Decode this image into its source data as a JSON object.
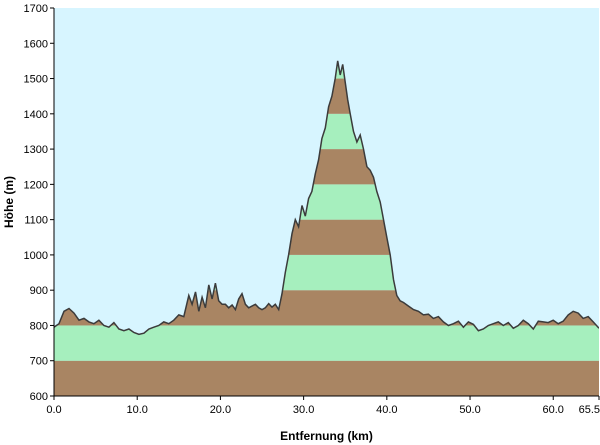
{
  "chart_data": {
    "type": "area",
    "title": "",
    "xlabel": "Entfernung  (km)",
    "ylabel": "Höhe (m)",
    "xlim": [
      0,
      65.5
    ],
    "ylim": [
      600,
      1700
    ],
    "x_ticks": [
      0,
      10,
      20,
      30,
      40,
      50,
      60,
      65.5
    ],
    "x_tick_labels": [
      "0.0",
      "10.0",
      "20.0",
      "30.0",
      "40.0",
      "50.0",
      "60.0",
      "65.5"
    ],
    "y_ticks": [
      600,
      700,
      800,
      900,
      1000,
      1100,
      1200,
      1300,
      1400,
      1500,
      1600,
      1700
    ],
    "y_tick_labels": [
      "600",
      "700",
      "800",
      "900",
      "1000",
      "1100",
      "1200",
      "1300",
      "1400",
      "1500",
      "1600",
      "1700"
    ],
    "band_interval_m": 100,
    "band_colors": [
      "#a98563",
      "#a6efbe"
    ],
    "background_color": "#d7f5ff",
    "line_color": "#3b3b3b",
    "series": [
      {
        "x": [
          0,
          0.6,
          1.2,
          1.8,
          2.4,
          3.0,
          3.6,
          4.2,
          4.8,
          5.4,
          6.0,
          6.6,
          7.2,
          7.8,
          8.4,
          9.0,
          9.6,
          10.2,
          10.8,
          11.4,
          12.0,
          12.6,
          13.2,
          13.8,
          14.4,
          15.0,
          15.6,
          16.2,
          16.6,
          17.0,
          17.4,
          17.8,
          18.2,
          18.6,
          19.0,
          19.4,
          19.8,
          20.2,
          20.6,
          21.0,
          21.4,
          21.8,
          22.2,
          22.6,
          23.0,
          23.4,
          23.8,
          24.2,
          24.6,
          25.0,
          25.4,
          25.8,
          26.2,
          26.6,
          27.0,
          27.4,
          27.8,
          28.2,
          28.6,
          29.0,
          29.4,
          29.8,
          30.2,
          30.6,
          31.0,
          31.4,
          31.8,
          32.2,
          32.6,
          33.0,
          33.4,
          33.8,
          34.1,
          34.4,
          34.7,
          35.0,
          35.3,
          35.6,
          36.0,
          36.4,
          36.8,
          37.2,
          37.6,
          38.0,
          38.4,
          38.8,
          39.2,
          39.6,
          40.0,
          40.4,
          40.8,
          41.2,
          41.6,
          42.0,
          42.6,
          43.2,
          43.8,
          44.4,
          45.0,
          45.6,
          46.2,
          46.8,
          47.4,
          48.0,
          48.6,
          49.2,
          49.8,
          50.4,
          51.0,
          51.6,
          52.2,
          52.8,
          53.4,
          54.0,
          54.6,
          55.2,
          55.8,
          56.4,
          57.0,
          57.6,
          58.2,
          58.8,
          59.4,
          60.0,
          60.6,
          61.2,
          61.8,
          62.4,
          63.0,
          63.6,
          64.2,
          64.8,
          65.5
        ],
        "values": [
          795,
          805,
          840,
          848,
          835,
          815,
          820,
          810,
          805,
          815,
          800,
          795,
          808,
          790,
          785,
          790,
          780,
          775,
          778,
          790,
          795,
          800,
          810,
          805,
          815,
          830,
          825,
          885,
          860,
          895,
          840,
          880,
          850,
          915,
          875,
          920,
          870,
          860,
          860,
          850,
          858,
          845,
          875,
          890,
          860,
          850,
          855,
          860,
          850,
          845,
          850,
          862,
          852,
          860,
          845,
          890,
          950,
          1000,
          1060,
          1100,
          1080,
          1140,
          1110,
          1160,
          1180,
          1230,
          1270,
          1330,
          1360,
          1420,
          1450,
          1500,
          1550,
          1510,
          1540,
          1490,
          1440,
          1400,
          1350,
          1320,
          1340,
          1300,
          1250,
          1240,
          1220,
          1180,
          1150,
          1100,
          1050,
          1000,
          930,
          885,
          870,
          865,
          855,
          845,
          840,
          830,
          832,
          820,
          825,
          810,
          800,
          805,
          812,
          795,
          810,
          803,
          785,
          790,
          800,
          805,
          810,
          800,
          808,
          792,
          800,
          815,
          805,
          790,
          812,
          810,
          808,
          815,
          805,
          812,
          830,
          840,
          835,
          820,
          825,
          810,
          792
        ]
      }
    ]
  }
}
